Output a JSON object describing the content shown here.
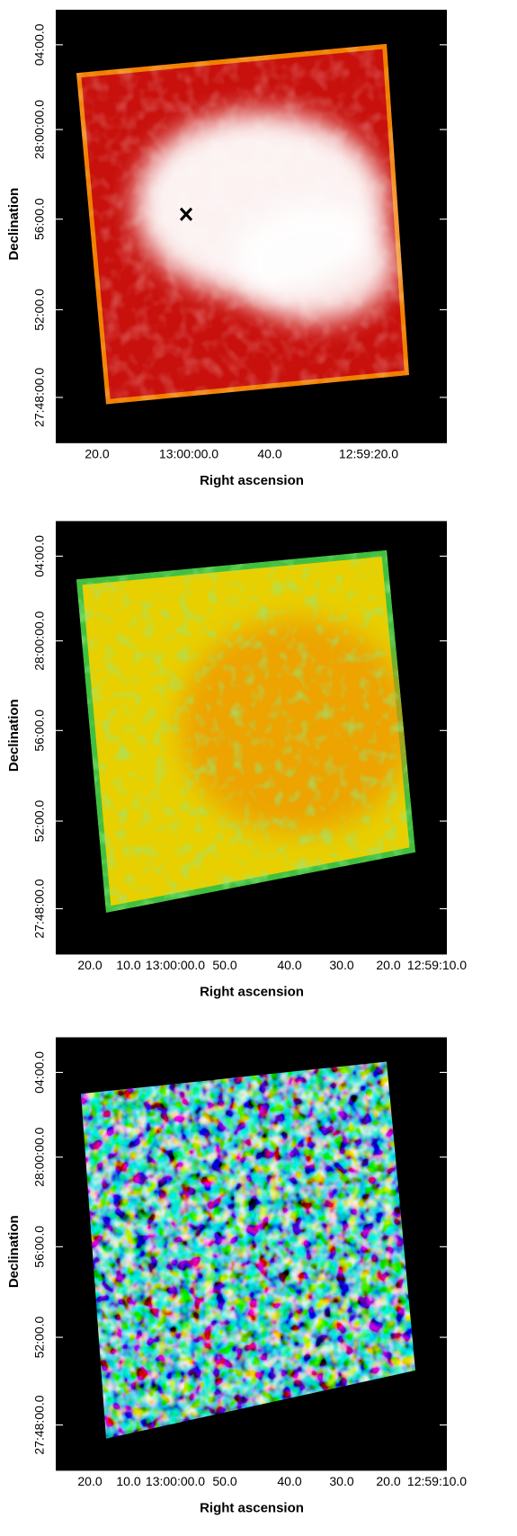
{
  "panels": [
    {
      "y_label": "Declination",
      "x_label": "Right ascension",
      "y_ticks": [
        "04:00.0",
        "28:00:00.0",
        "56:00.0",
        "52:00.0",
        "27:48:00.0"
      ],
      "x_ticks": [
        "20.0",
        "13:00:00.0",
        "40.0",
        "12:59:20.0"
      ]
    },
    {
      "y_label": "Declination",
      "x_label": "Right ascension",
      "y_ticks": [
        "04:00.0",
        "28:00:00.0",
        "56:00.0",
        "52:00.0",
        "27:48:00.0"
      ],
      "x_ticks": [
        "20.0",
        "10.0",
        "13:00:00.0",
        "50.0",
        "40.0",
        "30.0",
        "20.0",
        "12:59:10.0"
      ]
    },
    {
      "y_label": "Declination",
      "x_label": "Right ascension",
      "y_ticks": [
        "04:00.0",
        "28:00:00.0",
        "56:00.0",
        "52:00.0",
        "27:48:00.0"
      ],
      "x_ticks": [
        "20.0",
        "10.0",
        "13:00:00.0",
        "50.0",
        "40.0",
        "30.0",
        "20.0",
        "12:59:10.0"
      ]
    }
  ]
}
